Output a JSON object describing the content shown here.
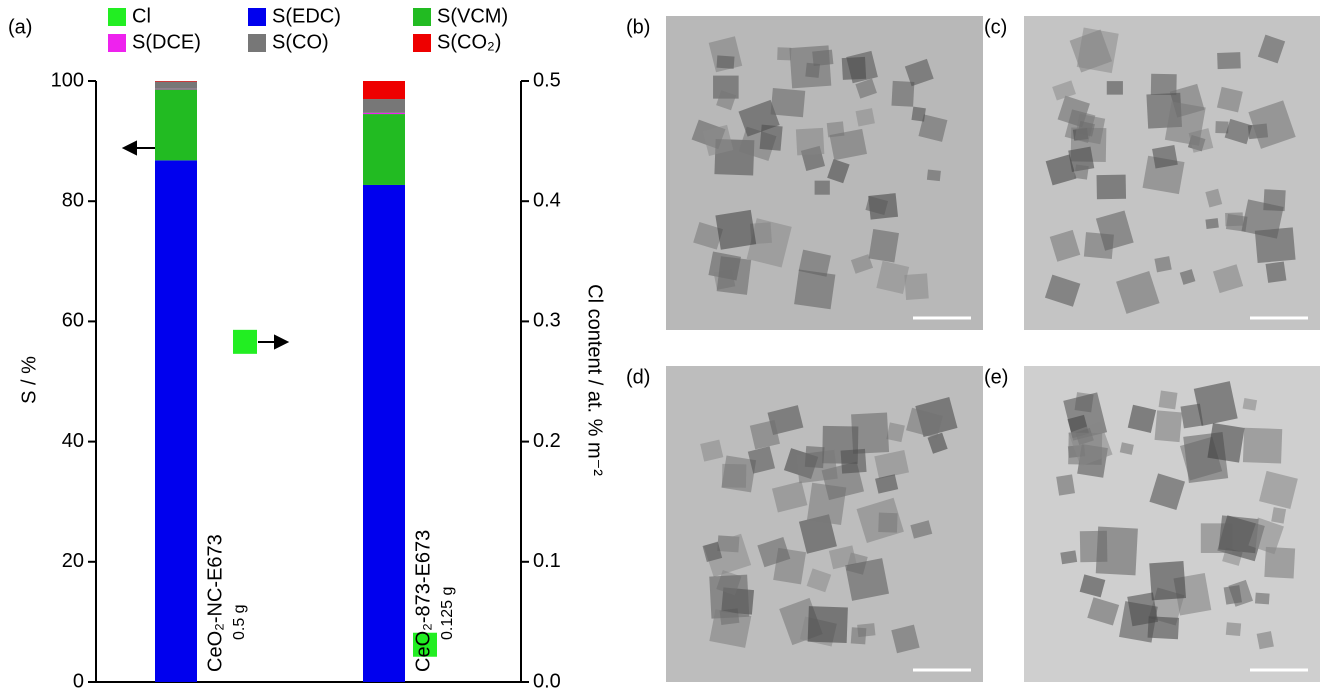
{
  "panel_label": "(a)",
  "chart_data": {
    "type": "stacked-bar",
    "categories": [
      "CeO₂-NC-E673",
      "CeO₂-873-E673"
    ],
    "category_notes": [
      "0.5 g",
      "0.125 g"
    ],
    "ylabel": "S / %",
    "y2label": "Cl content / at. % m⁻²",
    "ylim": [
      0,
      100
    ],
    "yticks": [
      0,
      20,
      40,
      60,
      80,
      100
    ],
    "y2lim": [
      0,
      0.5
    ],
    "y2ticks": [
      {
        "value": 0,
        "label": "0.0"
      },
      0.1,
      0.2,
      0.3,
      0.4,
      0.5
    ],
    "series": [
      {
        "name": "Cl",
        "color": "#22ee22",
        "axis": "y2",
        "values": [
          0.283,
          0.031
        ]
      },
      {
        "name": "S(EDC)",
        "color": "#0000ee",
        "values": [
          86.8,
          82.7
        ]
      },
      {
        "name": "S(VCM)",
        "color": "#22bb22",
        "values": [
          11.8,
          11.8
        ]
      },
      {
        "name": "S(DCE)",
        "color": "#ee22ee",
        "values": [
          0.1,
          0.2
        ]
      },
      {
        "name": "S(CO)",
        "color": "#777777",
        "values": [
          1.2,
          2.3
        ]
      },
      {
        "name": "S(CO₂)",
        "color": "#ee0000",
        "values": [
          0.1,
          3.0
        ]
      }
    ]
  },
  "panels": [
    {
      "label": "(b)"
    },
    {
      "label": "(c)"
    },
    {
      "label": "(d)"
    },
    {
      "label": "(e)"
    }
  ]
}
